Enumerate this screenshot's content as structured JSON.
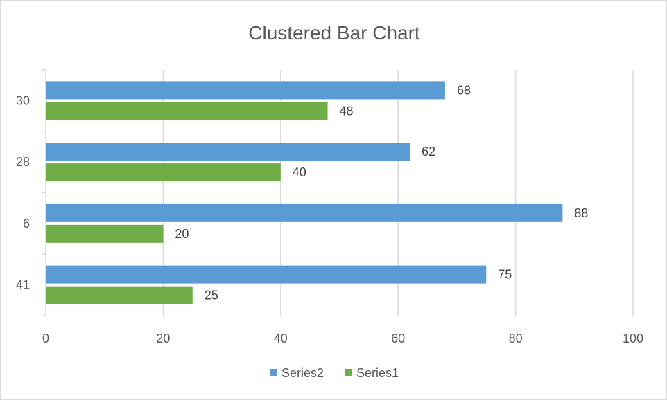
{
  "chart_data": {
    "type": "bar",
    "orientation": "horizontal",
    "title": "Clustered Bar Chart",
    "categories": [
      "30",
      "28",
      "6",
      "41"
    ],
    "series": [
      {
        "name": "Series2",
        "values": [
          68,
          62,
          88,
          75
        ],
        "color": "#5b9bd5"
      },
      {
        "name": "Series1",
        "values": [
          48,
          40,
          20,
          25
        ],
        "color": "#70ad47"
      }
    ],
    "xlim": [
      0,
      100
    ],
    "x_ticks": [
      "0",
      "20",
      "40",
      "60",
      "80",
      "100"
    ],
    "grid": true,
    "legend_position": "bottom",
    "data_labels": true
  }
}
